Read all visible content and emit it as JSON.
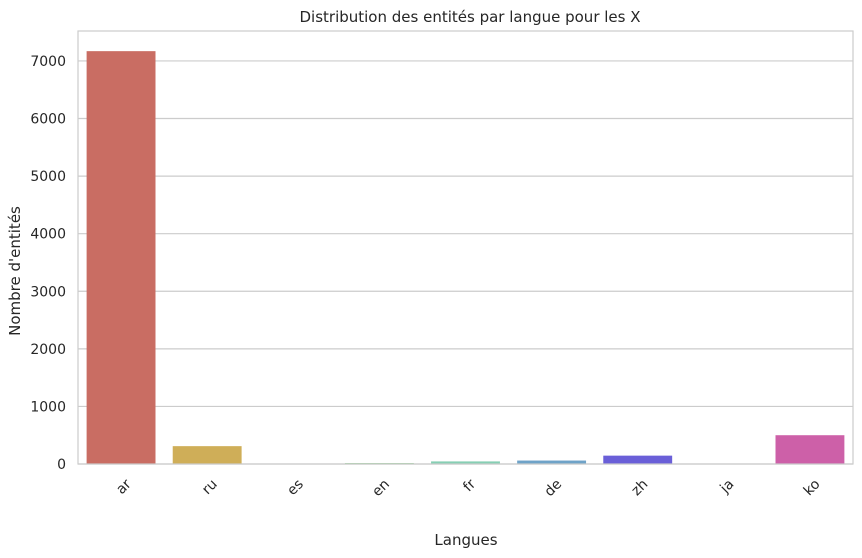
{
  "chart_data": {
    "type": "bar",
    "title": "Distribution des entités par langue pour les X",
    "xlabel": "Langues",
    "ylabel": "Nombre d'entités",
    "categories": [
      "ar",
      "ru",
      "es",
      "en",
      "fr",
      "de",
      "zh",
      "ja",
      "ko"
    ],
    "values": [
      7170,
      310,
      5,
      15,
      45,
      60,
      145,
      8,
      500
    ],
    "ylim": [
      0,
      7520
    ],
    "yticks": [
      0,
      1000,
      2000,
      3000,
      4000,
      5000,
      6000,
      7000
    ],
    "colors": [
      "#c96d63",
      "#cfae58",
      "#a5c66a",
      "#7ec983",
      "#86cfb4",
      "#6fa3c8",
      "#6a5fd8",
      "#a97fd6",
      "#cd60a8"
    ],
    "grid": "horizontal",
    "xtick_rotation": 45
  }
}
